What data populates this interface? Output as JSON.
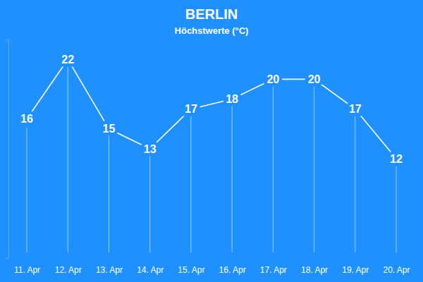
{
  "chart_data": {
    "type": "line",
    "title": "BERLIN",
    "subtitle": "Höchstwerte (°C)",
    "categories": [
      "11. Apr",
      "12. Apr",
      "13. Apr",
      "14. Apr",
      "15. Apr",
      "16. Apr",
      "17. Apr",
      "18. Apr",
      "19. Apr",
      "20. Apr"
    ],
    "values": [
      16,
      22,
      15,
      13,
      17,
      18,
      20,
      20,
      17,
      12
    ],
    "color": "#ffffff",
    "ylim": [
      2,
      24
    ],
    "yticks": [],
    "grid": false,
    "data_labels": true,
    "tick_labels": "x"
  }
}
